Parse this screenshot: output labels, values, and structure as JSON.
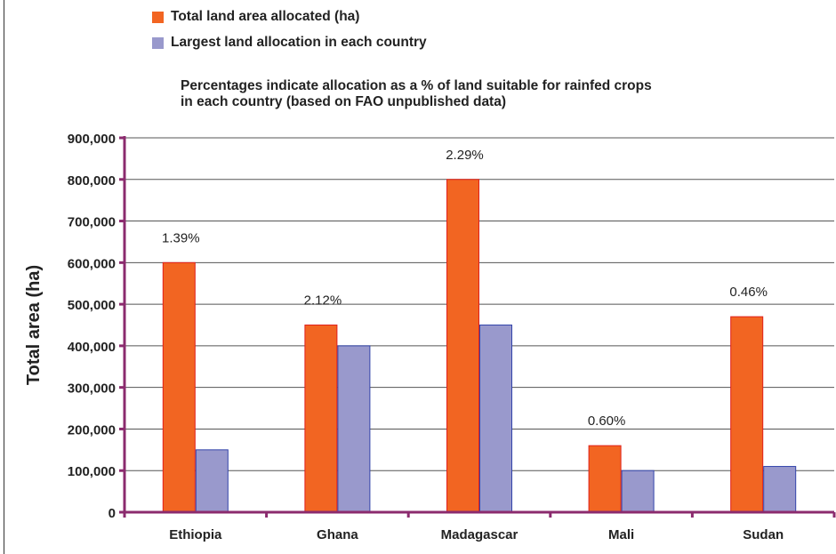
{
  "chart_data": {
    "type": "bar",
    "categories": [
      "Ethiopia",
      "Ghana",
      "Madagascar",
      "Mali",
      "Sudan"
    ],
    "series": [
      {
        "name": "Total land area allocated (ha)",
        "color": "#F26522",
        "stroke": "#E0201B",
        "values": [
          600000,
          450000,
          800000,
          160000,
          470000
        ]
      },
      {
        "name": "Largest land allocation in each country",
        "color": "#9999CC",
        "stroke": "#3344AA",
        "values": [
          150000,
          400000,
          450000,
          100000,
          110000
        ]
      }
    ],
    "annotations": [
      "1.39%",
      "2.12%",
      "2.29%",
      "0.60%",
      "0.46%"
    ],
    "note_lines": [
      "Percentages indicate allocation as a % of land suitable for rainfed crops",
      "in each country (based on FAO unpublished data)"
    ],
    "ylabel": "Total area (ha)",
    "xlabel": "",
    "ylim": [
      0,
      900000
    ],
    "yticks": [
      0,
      100000,
      200000,
      300000,
      400000,
      500000,
      600000,
      700000,
      800000,
      900000
    ],
    "ytick_labels": [
      "0",
      "100,000",
      "200,000",
      "300,000",
      "400,000",
      "500,000",
      "600,000",
      "700,000",
      "800,000",
      "900,000"
    ],
    "grid": true,
    "legend_position": "top-left",
    "axis_color": "#8B2B6E"
  }
}
